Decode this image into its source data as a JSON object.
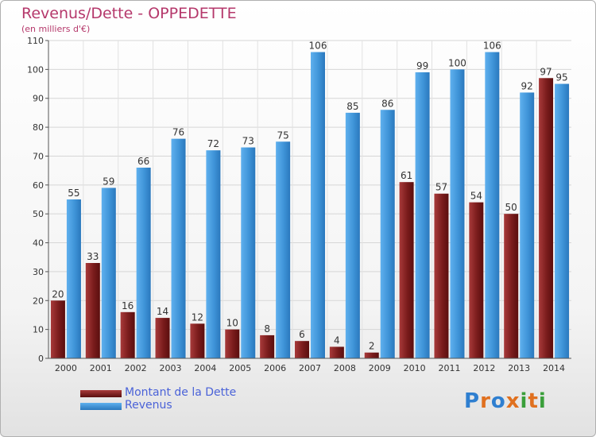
{
  "header": {
    "title": "Revenus/Dette - OPPEDETTE",
    "subtitle": "(en milliers d'€)"
  },
  "colors": {
    "debt": "#7a1c1c",
    "revenue": "#3f94d8",
    "title": "#b5386b",
    "legend_text": "#4a62d8"
  },
  "chart_data": {
    "type": "bar",
    "title": "Revenus/Dette - OPPEDETTE",
    "ylabel": "",
    "xlabel": "",
    "ylim": [
      0,
      110
    ],
    "yticks": [
      0,
      10,
      20,
      30,
      40,
      50,
      60,
      70,
      80,
      90,
      100,
      110
    ],
    "grid": true,
    "legend_position": "bottom-left",
    "categories": [
      "2000",
      "2001",
      "2002",
      "2003",
      "2004",
      "2005",
      "2006",
      "2007",
      "2008",
      "2009",
      "2010",
      "2011",
      "2012",
      "2013",
      "2014"
    ],
    "series": [
      {
        "name": "Montant de la Dette",
        "color": "#7a1c1c",
        "values": [
          20,
          33,
          16,
          14,
          12,
          10,
          8,
          6,
          4,
          2,
          61,
          57,
          54,
          50,
          97
        ]
      },
      {
        "name": "Revenus",
        "color": "#3f94d8",
        "values": [
          55,
          59,
          66,
          76,
          72,
          73,
          75,
          106,
          85,
          86,
          99,
          100,
          106,
          92,
          95
        ]
      }
    ]
  },
  "legend": [
    {
      "label": "Montant de la Dette",
      "icon": "dark-red-swatch"
    },
    {
      "label": "Revenus",
      "icon": "blue-swatch"
    }
  ],
  "logo": {
    "letters": [
      "P",
      "r",
      "o",
      "x",
      "i",
      "t",
      "i"
    ],
    "colors": [
      "#2f7fd0",
      "#e0701f",
      "#2f7fd0",
      "#e0701f",
      "#3a9f3a",
      "#e0701f",
      "#3a9f3a"
    ]
  }
}
